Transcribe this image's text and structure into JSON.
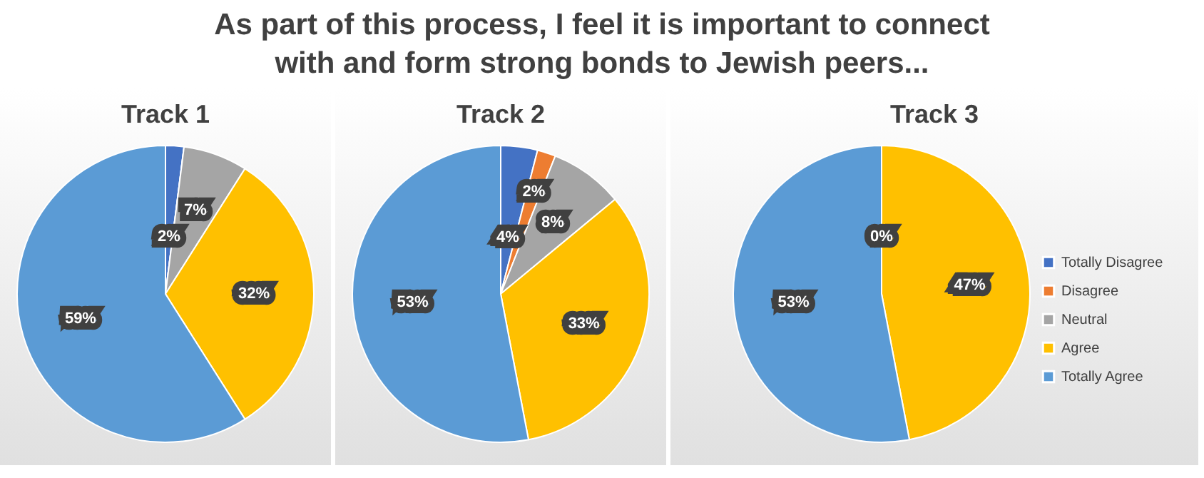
{
  "chart_data": [
    {
      "type": "pie",
      "title": "Track 1",
      "annotations": [
        "As part of this process, I feel it is important to connect with and form strong bonds to Jewish peers..."
      ],
      "categories": [
        null,
        null,
        null,
        null,
        null
      ],
      "values": [
        2,
        0,
        7,
        32,
        59
      ],
      "value_labels": [
        "2%",
        null,
        "7%",
        "32%",
        "59%"
      ],
      "colors": [
        "#4472c4",
        "#ed7d31",
        "#a5a5a5",
        "#ffc000",
        "#5b9bd5"
      ]
    },
    {
      "type": "pie",
      "title": "Track 2",
      "categories": [
        null,
        null,
        null,
        null,
        null
      ],
      "values": [
        4,
        2,
        8,
        33,
        53
      ],
      "value_labels": [
        "4%",
        "2%",
        "8%",
        "33%",
        "53%"
      ],
      "colors": [
        "#4472c4",
        "#ed7d31",
        "#a5a5a5",
        "#ffc000",
        "#5b9bd5"
      ]
    },
    {
      "type": "pie",
      "title": "Track 3",
      "legend": "right",
      "categories": [
        "Totally Disagree",
        "Disagree",
        "Neutral",
        "Agree",
        "Totally Agree"
      ],
      "values": [
        0,
        0,
        0,
        47,
        53
      ],
      "value_labels": [
        "0%",
        null,
        null,
        "47%",
        "53%"
      ],
      "colors": [
        "#4472c4",
        "#ed7d31",
        "#a5a5a5",
        "#ffc000",
        "#5b9bd5"
      ]
    }
  ]
}
